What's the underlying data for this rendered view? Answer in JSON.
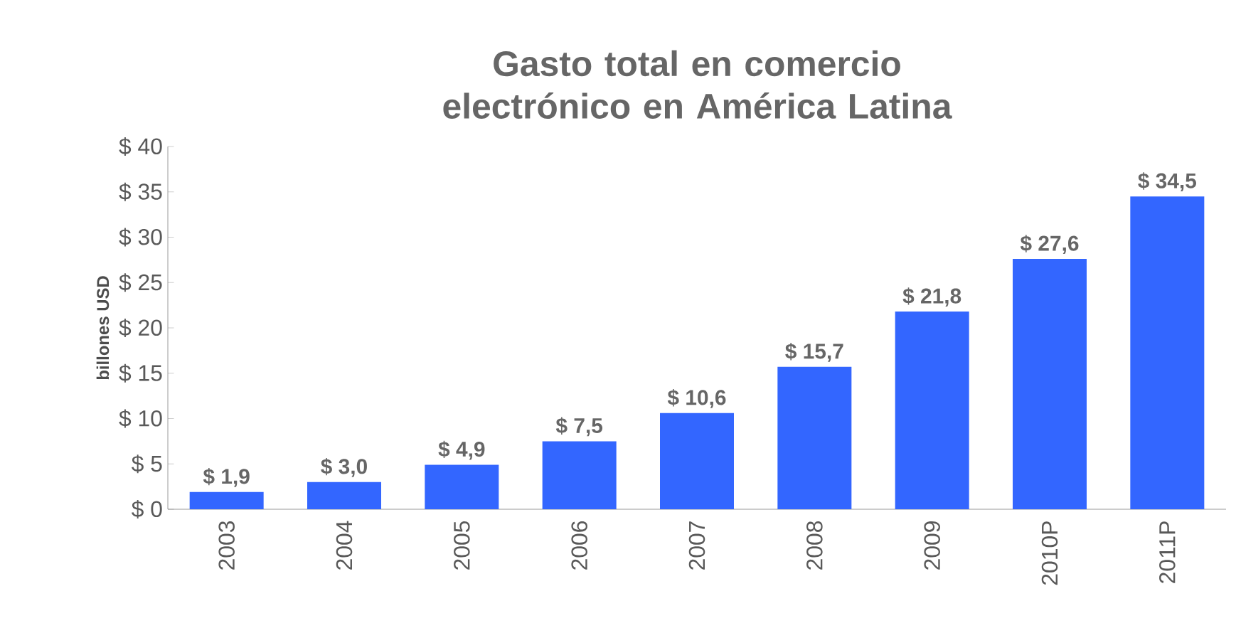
{
  "chart_data": {
    "type": "bar",
    "title": "Gasto total en comercio electrónico en América Latina",
    "ylabel": "billones USD",
    "categories": [
      "2003",
      "2004",
      "2005",
      "2006",
      "2007",
      "2008",
      "2009",
      "2010P",
      "2011P"
    ],
    "values": [
      1.9,
      3.0,
      4.9,
      7.5,
      10.6,
      15.7,
      21.8,
      27.6,
      34.5
    ],
    "value_labels": [
      "$ 1,9",
      "$ 3,0",
      "$ 4,9",
      "$ 7,5",
      "$ 10,6",
      "$ 15,7",
      "$ 21,8",
      "$ 27,6",
      "$ 34,5"
    ],
    "color": "#3366ff",
    "ylim": [
      0,
      40
    ],
    "yticks": [
      {
        "value": 0,
        "label": "$ 0"
      },
      {
        "value": 5,
        "label": "$ 5"
      },
      {
        "value": 10,
        "label": "$ 10"
      },
      {
        "value": 15,
        "label": "$ 15"
      },
      {
        "value": 20,
        "label": "$ 20"
      },
      {
        "value": 25,
        "label": "$ 25"
      },
      {
        "value": 30,
        "label": "$ 30"
      },
      {
        "value": 35,
        "label": "$ 35"
      },
      {
        "value": 40,
        "label": "$ 40"
      }
    ]
  }
}
